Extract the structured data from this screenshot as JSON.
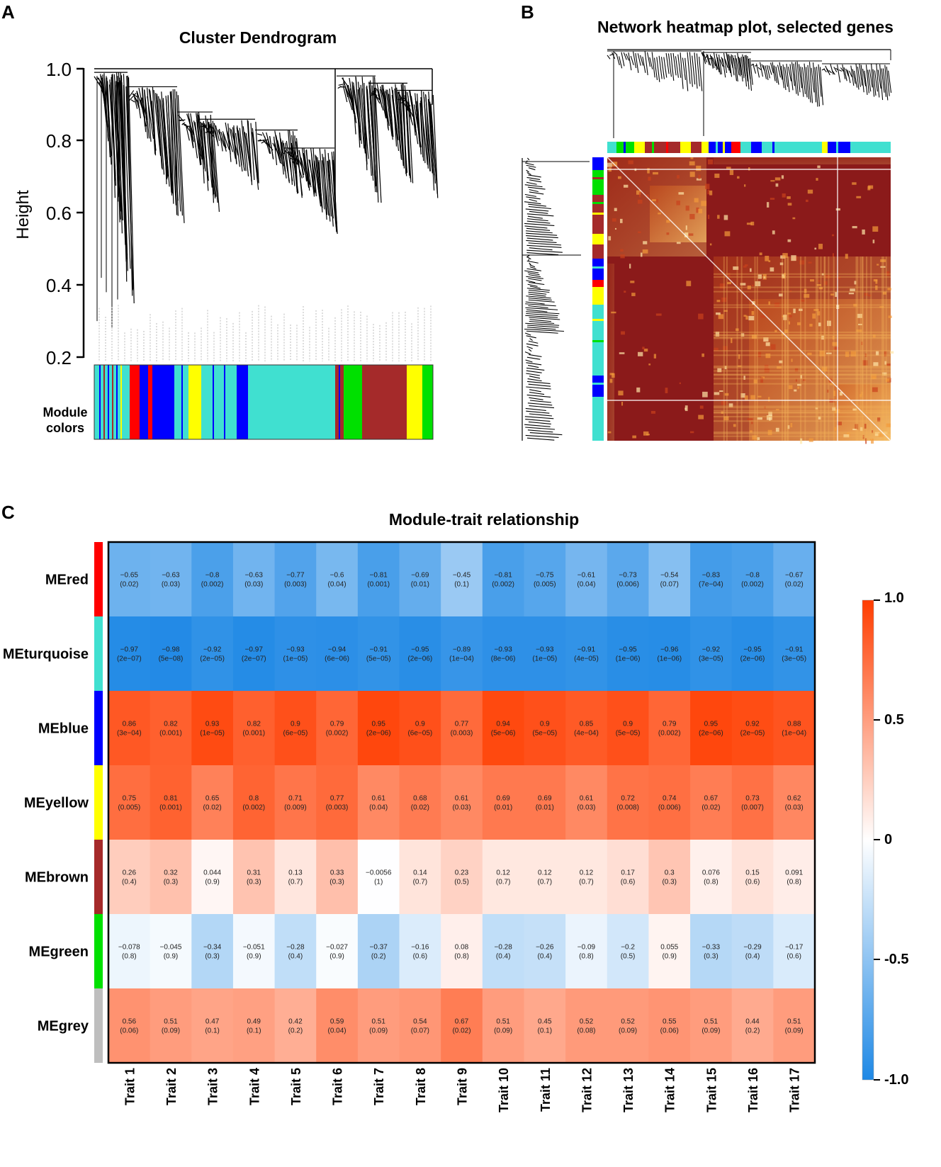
{
  "panels": {
    "a": {
      "letter": "A",
      "title": "Cluster Dendrogram",
      "ylabel": "Height",
      "yticks": [
        "1.0",
        "0.8",
        "0.6",
        "0.4",
        "0.2"
      ],
      "module_label_line1": "Module",
      "module_label_line2": "colors"
    },
    "b": {
      "letter": "B",
      "title": "Network heatmap plot, selected genes"
    },
    "c": {
      "letter": "C",
      "title": "Module-trait relationship"
    }
  },
  "colors": {
    "turquoise": "#40e0d0",
    "blue": "#0000ff",
    "red": "#ff0000",
    "yellow": "#ffff00",
    "green": "#00e000",
    "brown": "#a52a2a",
    "grey": "#bebebe",
    "heat_dark": "#8b1a1a",
    "heat_light": "#fff4c8",
    "neg": "#1e88e5",
    "pos": "#ff3d00"
  },
  "chart_data": [
    {
      "type": "dendrogram",
      "title": "Cluster Dendrogram",
      "ylabel": "Height",
      "ylim": [
        0.2,
        1.0
      ],
      "yticks": [
        1.0,
        0.8,
        0.6,
        0.4,
        0.2
      ],
      "module_color_bar": [
        "turquoise",
        "blue",
        "red",
        "blue",
        "red",
        "blue",
        "turquoise",
        "yellow",
        "turquoise",
        "blue",
        "turquoise",
        "turquoise",
        "brown",
        "green",
        "brown",
        "yellow",
        "green"
      ]
    },
    {
      "type": "heatmap",
      "title": "Network heatmap plot, selected genes",
      "module_color_bar": [
        "turquoise",
        "green",
        "brown",
        "yellow",
        "red",
        "blue",
        "turquoise",
        "blue",
        "turquoise",
        "yellow",
        "blue",
        "turquoise"
      ]
    },
    {
      "type": "heatmap",
      "title": "Module-trait relationship",
      "rows": [
        "MEred",
        "MEturquoise",
        "MEblue",
        "MEyellow",
        "MEbrown",
        "MEgreen",
        "MEgrey"
      ],
      "row_colors": [
        "red",
        "turquoise",
        "blue",
        "yellow",
        "brown",
        "green",
        "grey"
      ],
      "columns": [
        "Trait 1",
        "Trait 2",
        "Trait 3",
        "Trait 4",
        "Trait 5",
        "Trait 6",
        "Trait 7",
        "Trait 8",
        "Trait 9",
        "Trait 10",
        "Trait 11",
        "Trait 12",
        "Trait 13",
        "Trait 14",
        "Trait 15",
        "Trait 16",
        "Trait 17"
      ],
      "values": [
        [
          "−0.65",
          "−0.63",
          "−0.8",
          "−0.63",
          "−0.77",
          "−0.6",
          "−0.81",
          "−0.69",
          "−0.45",
          "−0.81",
          "−0.75",
          "−0.61",
          "−0.73",
          "−0.54",
          "−0.83",
          "−0.8",
          "−0.67"
        ],
        [
          "−0.97",
          "−0.98",
          "−0.92",
          "−0.97",
          "−0.93",
          "−0.94",
          "−0.91",
          "−0.95",
          "−0.89",
          "−0.93",
          "−0.93",
          "−0.91",
          "−0.95",
          "−0.96",
          "−0.92",
          "−0.95",
          "−0.91"
        ],
        [
          "0.86",
          "0.82",
          "0.93",
          "0.82",
          "0.9",
          "0.79",
          "0.95",
          "0.9",
          "0.77",
          "0.94",
          "0.9",
          "0.85",
          "0.9",
          "0.79",
          "0.95",
          "0.92",
          "0.88"
        ],
        [
          "0.75",
          "0.81",
          "0.65",
          "0.8",
          "0.71",
          "0.77",
          "0.61",
          "0.68",
          "0.61",
          "0.69",
          "0.69",
          "0.61",
          "0.72",
          "0.74",
          "0.67",
          "0.73",
          "0.62"
        ],
        [
          "0.26",
          "0.32",
          "0.044",
          "0.31",
          "0.13",
          "0.33",
          "−0.0056",
          "0.14",
          "0.23",
          "0.12",
          "0.12",
          "0.12",
          "0.17",
          "0.3",
          "0.076",
          "0.15",
          "0.091"
        ],
        [
          "−0.078",
          "−0.045",
          "−0.34",
          "−0.051",
          "−0.28",
          "−0.027",
          "−0.37",
          "−0.16",
          "0.08",
          "−0.28",
          "−0.26",
          "−0.09",
          "−0.2",
          "0.055",
          "−0.33",
          "−0.29",
          "−0.17"
        ],
        [
          "0.56",
          "0.51",
          "0.47",
          "0.49",
          "0.42",
          "0.59",
          "0.51",
          "0.54",
          "0.67",
          "0.51",
          "0.45",
          "0.52",
          "0.52",
          "0.55",
          "0.51",
          "0.44",
          "0.51"
        ]
      ],
      "pvalues": [
        [
          "(0.02)",
          "(0.03)",
          "(0.002)",
          "(0.03)",
          "(0.003)",
          "(0.04)",
          "(0.001)",
          "(0.01)",
          "(0.1)",
          "(0.002)",
          "(0.005)",
          "(0.04)",
          "(0.006)",
          "(0.07)",
          "(7e−04)",
          "(0.002)",
          "(0.02)"
        ],
        [
          "(2e−07)",
          "(5e−08)",
          "(2e−05)",
          "(2e−07)",
          "(1e−05)",
          "(6e−06)",
          "(5e−05)",
          "(2e−06)",
          "(1e−04)",
          "(8e−06)",
          "(1e−05)",
          "(4e−05)",
          "(1e−06)",
          "(1e−06)",
          "(3e−05)",
          "(2e−06)",
          "(3e−05)"
        ],
        [
          "(3e−04)",
          "(0.001)",
          "(1e−05)",
          "(0.001)",
          "(6e−05)",
          "(0.002)",
          "(2e−06)",
          "(6e−05)",
          "(0.003)",
          "(5e−06)",
          "(5e−05)",
          "(4e−04)",
          "(5e−05)",
          "(0.002)",
          "(2e−06)",
          "(2e−05)",
          "(1e−04)"
        ],
        [
          "(0.005)",
          "(0.001)",
          "(0.02)",
          "(0.002)",
          "(0.009)",
          "(0.003)",
          "(0.04)",
          "(0.02)",
          "(0.03)",
          "(0.01)",
          "(0.01)",
          "(0.03)",
          "(0.008)",
          "(0.006)",
          "(0.02)",
          "(0.007)",
          "(0.03)"
        ],
        [
          "(0.4)",
          "(0.3)",
          "(0.9)",
          "(0.3)",
          "(0.7)",
          "(0.3)",
          "(1)",
          "(0.7)",
          "(0.5)",
          "(0.7)",
          "(0.7)",
          "(0.7)",
          "(0.6)",
          "(0.3)",
          "(0.8)",
          "(0.6)",
          "(0.8)"
        ],
        [
          "(0.8)",
          "(0.9)",
          "(0.3)",
          "(0.9)",
          "(0.4)",
          "(0.9)",
          "(0.2)",
          "(0.6)",
          "(0.8)",
          "(0.4)",
          "(0.4)",
          "(0.8)",
          "(0.5)",
          "(0.9)",
          "(0.3)",
          "(0.4)",
          "(0.6)"
        ],
        [
          "(0.06)",
          "(0.09)",
          "(0.1)",
          "(0.1)",
          "(0.2)",
          "(0.04)",
          "(0.09)",
          "(0.07)",
          "(0.02)",
          "(0.09)",
          "(0.1)",
          "(0.08)",
          "(0.09)",
          "(0.06)",
          "(0.09)",
          "(0.2)",
          "(0.09)"
        ]
      ],
      "colorbar": {
        "range": [
          -1.0,
          1.0
        ],
        "ticks": [
          "1.0",
          "0.5",
          "0",
          "-0.5",
          "-1.0"
        ]
      }
    }
  ]
}
